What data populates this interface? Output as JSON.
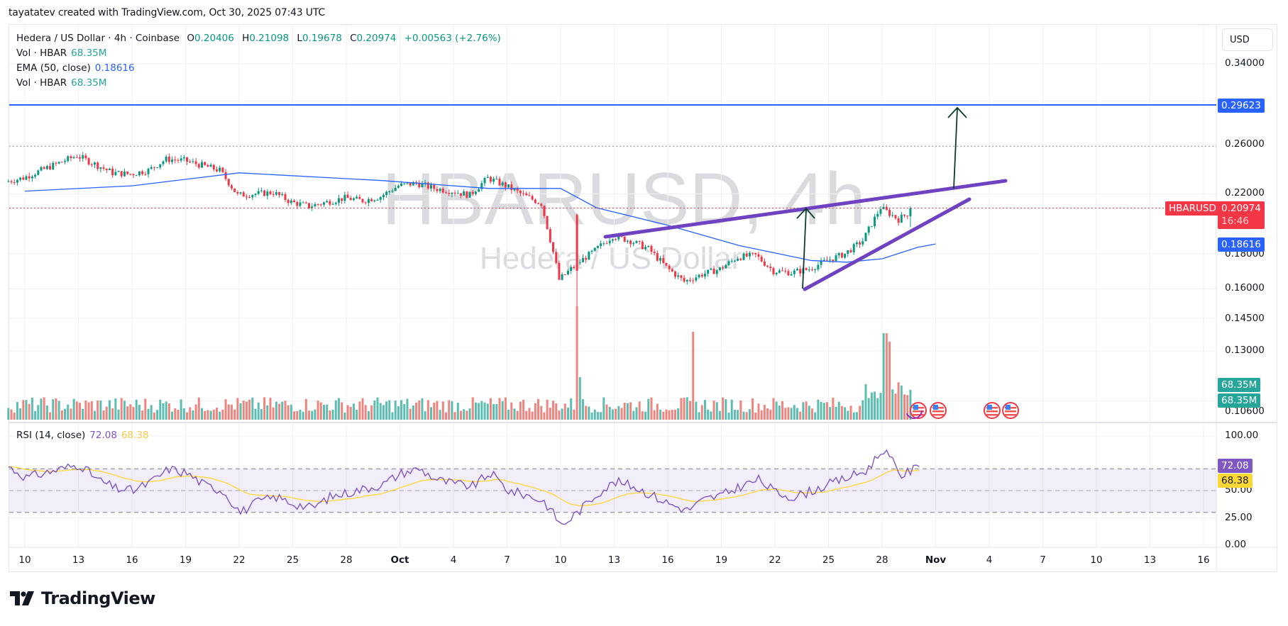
{
  "credit": "tayatatev created with TradingView.com, Oct 30, 2025 07:43 UTC",
  "legend": {
    "symbol": "Hedera / US Dollar · 4h · Coinbase",
    "o_label": "O",
    "o": "0.20406",
    "h_label": "H",
    "h": "0.21098",
    "l_label": "L",
    "l": "0.19678",
    "c_label": "C",
    "c": "0.20974",
    "change": "+0.00563 (+2.76%)",
    "vol1_label": "Vol · HBAR",
    "vol1": "68.35M",
    "ema_label": "EMA (50, close)",
    "ema": "0.18616",
    "vol2_label": "Vol · HBAR",
    "vol2": "68.35M"
  },
  "rsi_legend": {
    "label": "RSI (14, close)",
    "rsi": "72.08",
    "ma": "68.38"
  },
  "watermark": {
    "symbol": "HBARUSD, 4h",
    "name": "Hedera / US Dollar"
  },
  "price_axis": {
    "currency": "USD",
    "ticks": [
      "0.34000",
      "0.26000",
      "0.22000",
      "0.18000",
      "0.16000",
      "0.14500",
      "0.13000",
      "0.10600"
    ],
    "tags": {
      "target": "0.29623",
      "last_symbol": "HBARUSD",
      "last_price": "0.20974",
      "countdown": "16:46",
      "ema": "0.18616",
      "vol_a": "68.35M",
      "vol_b": "68.35M"
    }
  },
  "rsi_axis": {
    "ticks": [
      "100.00",
      "50.00",
      "25.00",
      "0.00"
    ],
    "rsi_tag": "72.08",
    "ma_tag": "68.38"
  },
  "time_axis": {
    "labels": [
      "10",
      "13",
      "16",
      "19",
      "22",
      "25",
      "28",
      "Oct",
      "4",
      "7",
      "10",
      "13",
      "16",
      "19",
      "22",
      "25",
      "28",
      "Nov",
      "4",
      "7",
      "10",
      "13",
      "16"
    ]
  },
  "branding": {
    "logo_text": "TradingView"
  },
  "colors": {
    "up": "#089981",
    "down": "#f23645",
    "vol_up": "#5cbdb1",
    "vol_down": "#f0857f",
    "ema": "#2962ff",
    "wedge": "#6f42c1",
    "rsi": "#7e57c2",
    "rsi_ma": "#fdd835",
    "target_line": "#2962ff",
    "arrow": "#0d3b2e"
  },
  "chart_data": {
    "type": "candlestick",
    "title": "HBARUSD, 4h (Hedera / US Dollar · Coinbase)",
    "xlabel": "",
    "ylabel": "USD",
    "x_range": [
      "2025-09-09",
      "2025-11-16"
    ],
    "ylim": [
      0.106,
      0.34
    ],
    "y_scale": "log",
    "last_candle": {
      "open": 0.20406,
      "high": 0.21098,
      "low": 0.19678,
      "close": 0.20974,
      "change": 0.00563,
      "change_pct": 2.76
    },
    "daily_closes": {
      "dates": [
        "Sep 9",
        "Sep 10",
        "Sep 11",
        "Sep 12",
        "Sep 13",
        "Sep 14",
        "Sep 15",
        "Sep 16",
        "Sep 17",
        "Sep 18",
        "Sep 19",
        "Sep 20",
        "Sep 21",
        "Sep 22",
        "Sep 23",
        "Sep 24",
        "Sep 25",
        "Sep 26",
        "Sep 27",
        "Sep 28",
        "Sep 29",
        "Sep 30",
        "Oct 1",
        "Oct 2",
        "Oct 3",
        "Oct 4",
        "Oct 5",
        "Oct 6",
        "Oct 7",
        "Oct 8",
        "Oct 9",
        "Oct 10",
        "Oct 11",
        "Oct 12",
        "Oct 13",
        "Oct 14",
        "Oct 15",
        "Oct 16",
        "Oct 17",
        "Oct 18",
        "Oct 19",
        "Oct 20",
        "Oct 21",
        "Oct 22",
        "Oct 23",
        "Oct 24",
        "Oct 25",
        "Oct 26",
        "Oct 27",
        "Oct 28",
        "Oct 29",
        "Oct 30"
      ],
      "close": [
        0.229,
        0.232,
        0.238,
        0.244,
        0.25,
        0.243,
        0.236,
        0.235,
        0.238,
        0.247,
        0.246,
        0.242,
        0.238,
        0.219,
        0.22,
        0.221,
        0.214,
        0.211,
        0.214,
        0.217,
        0.215,
        0.218,
        0.226,
        0.228,
        0.224,
        0.222,
        0.219,
        0.232,
        0.226,
        0.219,
        0.213,
        0.165,
        0.174,
        0.182,
        0.191,
        0.188,
        0.183,
        0.172,
        0.164,
        0.168,
        0.171,
        0.178,
        0.179,
        0.17,
        0.169,
        0.171,
        0.176,
        0.18,
        0.188,
        0.21,
        0.202,
        0.21
      ]
    },
    "ema50": {
      "value": 0.18616,
      "points": [
        [
          0,
          0.222
        ],
        [
          6,
          0.226
        ],
        [
          12,
          0.236
        ],
        [
          20,
          0.23
        ],
        [
          26,
          0.224
        ],
        [
          30,
          0.224
        ],
        [
          32,
          0.21
        ],
        [
          36,
          0.198
        ],
        [
          40,
          0.185
        ],
        [
          44,
          0.176
        ],
        [
          46,
          0.175
        ],
        [
          48,
          0.177
        ],
        [
          50,
          0.184
        ],
        [
          51,
          0.186
        ]
      ]
    },
    "annotations": {
      "target_level": 0.29623,
      "resistance_line": [
        [
          "Oct 12 12:00",
          0.187
        ],
        [
          "Nov 3",
          0.226
        ]
      ],
      "support_line": [
        [
          "Oct 23 12:00",
          0.16
        ],
        [
          "Nov 1 12:00",
          0.214
        ]
      ],
      "arrows": [
        {
          "from": [
            "Oct 23 12:00",
            0.16
          ],
          "to": [
            "Oct 23 18:00",
            0.209
          ]
        },
        {
          "from": [
            "Nov 1",
            0.224
          ],
          "to": [
            "Nov 1 06:00",
            0.296
          ]
        }
      ],
      "dotted_levels": [
        0.258,
        0.20974
      ],
      "event_icons": [
        "Oct 29",
        "Oct 30",
        "Oct 31",
        "Nov 3",
        "Nov 4"
      ]
    },
    "volume": {
      "last": "68.35M",
      "spikes": [
        {
          "date": "Oct 10",
          "relative": 1.0
        },
        {
          "date": "Oct 17",
          "relative": 0.78
        },
        {
          "date": "Oct 28",
          "relative": 0.76
        }
      ]
    },
    "rsi": {
      "period": 14,
      "value": 72.08,
      "ma": 68.38,
      "bands": [
        30,
        50,
        70
      ],
      "ylim": [
        0,
        100
      ],
      "daily": [
        72,
        62,
        66,
        70,
        74,
        60,
        52,
        50,
        58,
        70,
        66,
        55,
        50,
        30,
        40,
        44,
        38,
        34,
        44,
        48,
        52,
        56,
        66,
        70,
        60,
        56,
        54,
        66,
        50,
        46,
        40,
        18,
        32,
        48,
        58,
        54,
        46,
        38,
        32,
        42,
        46,
        54,
        60,
        48,
        44,
        50,
        56,
        62,
        68,
        88,
        64,
        72
      ]
    }
  }
}
